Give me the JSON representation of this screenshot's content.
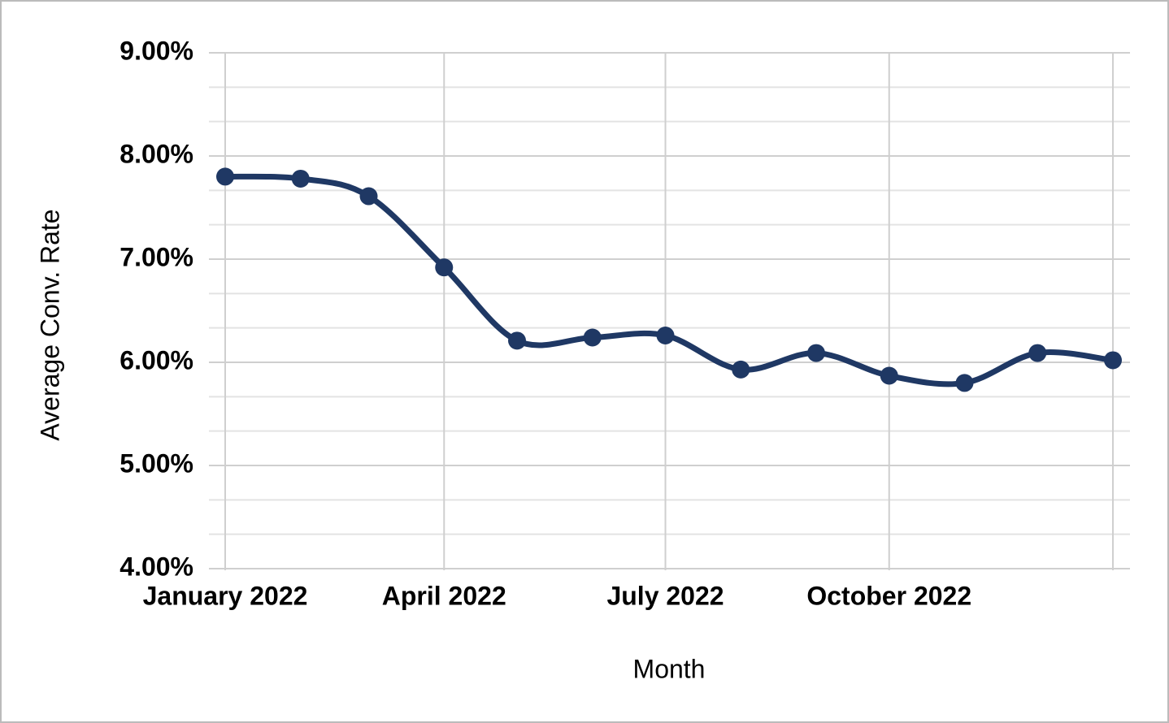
{
  "chart_data": {
    "type": "line",
    "x_axis_label": "Month",
    "y_axis_label": "Average Conv. Rate",
    "x": [
      "2022-01",
      "2022-02",
      "2022-03",
      "2022-04",
      "2022-05",
      "2022-06",
      "2022-07",
      "2022-08",
      "2022-09",
      "2022-10",
      "2022-11",
      "2022-12",
      "2023-01"
    ],
    "series": [
      {
        "name": "Average Conv. Rate",
        "color": "#1f3864",
        "values": [
          7.8,
          7.78,
          7.61,
          6.92,
          6.21,
          6.24,
          6.26,
          5.93,
          6.09,
          5.87,
          5.8,
          6.09,
          6.02
        ]
      }
    ],
    "xlim": [
      "2022-01",
      "2023-01"
    ],
    "xticks": [
      {
        "value": "2022-01",
        "label": "January 2022"
      },
      {
        "value": "2022-04",
        "label": "April 2022"
      },
      {
        "value": "2022-07",
        "label": "July 2022"
      },
      {
        "value": "2022-10",
        "label": "October 2022"
      }
    ],
    "ylim": [
      4,
      9
    ],
    "yticks": [
      {
        "value": 4,
        "label": "4.00%"
      },
      {
        "value": 5,
        "label": "5.00%"
      },
      {
        "value": 6,
        "label": "6.00%"
      },
      {
        "value": 7,
        "label": "7.00%"
      },
      {
        "value": 8,
        "label": "8.00%"
      },
      {
        "value": 9,
        "label": "9.00%"
      }
    ],
    "grid": true,
    "minor_grid_divisions": 3,
    "smooth": true
  }
}
